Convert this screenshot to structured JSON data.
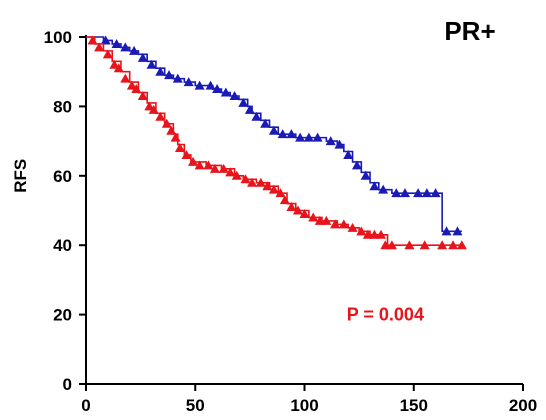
{
  "chart_data": {
    "type": "line",
    "title": "PR+",
    "ylabel": "RFS",
    "xlabel": "",
    "xlim": [
      0,
      200
    ],
    "ylim": [
      0,
      100
    ],
    "x_ticks": [
      "0",
      "50",
      "100",
      "150",
      "200"
    ],
    "y_ticks": [
      "0",
      "20",
      "40",
      "60",
      "80",
      "100"
    ],
    "x_tick_values": [
      0,
      50,
      100,
      150,
      200
    ],
    "y_tick_values": [
      0,
      20,
      40,
      60,
      80,
      100
    ],
    "grid": false,
    "annotation": {
      "text": "P = 0.004",
      "color": "#e8141b"
    },
    "series": [
      {
        "color": "#1a1ab4",
        "step": [
          [
            0,
            100
          ],
          [
            8,
            99
          ],
          [
            12,
            98
          ],
          [
            16,
            97
          ],
          [
            20,
            96
          ],
          [
            24,
            95
          ],
          [
            28,
            93
          ],
          [
            32,
            91
          ],
          [
            36,
            89
          ],
          [
            40,
            88
          ],
          [
            45,
            87
          ],
          [
            50,
            86
          ],
          [
            55,
            86
          ],
          [
            58,
            85
          ],
          [
            62,
            84
          ],
          [
            66,
            83
          ],
          [
            70,
            82
          ],
          [
            74,
            80
          ],
          [
            76,
            78
          ],
          [
            80,
            76
          ],
          [
            84,
            74
          ],
          [
            88,
            72
          ],
          [
            92,
            72
          ],
          [
            96,
            71
          ],
          [
            100,
            71
          ],
          [
            105,
            71
          ],
          [
            110,
            70
          ],
          [
            115,
            69
          ],
          [
            118,
            67
          ],
          [
            122,
            64
          ],
          [
            126,
            61
          ],
          [
            130,
            58
          ],
          [
            134,
            56
          ],
          [
            140,
            55
          ],
          [
            150,
            55
          ],
          [
            160,
            55
          ],
          [
            163,
            55
          ],
          [
            163,
            44
          ],
          [
            172,
            44
          ]
        ],
        "markers": [
          [
            9,
            99
          ],
          [
            14,
            98
          ],
          [
            18,
            97
          ],
          [
            22,
            96
          ],
          [
            26,
            94
          ],
          [
            30,
            92
          ],
          [
            34,
            90
          ],
          [
            38,
            89
          ],
          [
            42,
            88
          ],
          [
            47,
            87
          ],
          [
            52,
            86
          ],
          [
            57,
            86
          ],
          [
            60,
            85
          ],
          [
            64,
            84
          ],
          [
            68,
            83
          ],
          [
            72,
            81
          ],
          [
            75,
            79
          ],
          [
            78,
            77
          ],
          [
            82,
            75
          ],
          [
            86,
            73
          ],
          [
            90,
            72
          ],
          [
            94,
            72
          ],
          [
            98,
            71
          ],
          [
            102,
            71
          ],
          [
            106,
            71
          ],
          [
            112,
            70
          ],
          [
            116,
            69
          ],
          [
            120,
            66
          ],
          [
            124,
            63
          ],
          [
            128,
            60
          ],
          [
            132,
            57
          ],
          [
            136,
            56
          ],
          [
            142,
            55
          ],
          [
            146,
            55
          ],
          [
            152,
            55
          ],
          [
            156,
            55
          ],
          [
            160,
            55
          ],
          [
            165,
            44
          ],
          [
            170,
            44
          ]
        ]
      },
      {
        "color": "#e8141b",
        "step": [
          [
            0,
            100
          ],
          [
            4,
            98
          ],
          [
            8,
            96
          ],
          [
            12,
            93
          ],
          [
            16,
            90
          ],
          [
            20,
            87
          ],
          [
            24,
            84
          ],
          [
            28,
            81
          ],
          [
            32,
            78
          ],
          [
            36,
            75
          ],
          [
            40,
            72
          ],
          [
            42,
            69
          ],
          [
            45,
            66
          ],
          [
            48,
            64
          ],
          [
            55,
            63
          ],
          [
            62,
            62
          ],
          [
            68,
            60
          ],
          [
            72,
            59
          ],
          [
            78,
            58
          ],
          [
            84,
            57
          ],
          [
            88,
            55
          ],
          [
            92,
            52
          ],
          [
            96,
            50
          ],
          [
            102,
            48
          ],
          [
            108,
            47
          ],
          [
            115,
            46
          ],
          [
            120,
            45
          ],
          [
            125,
            44
          ],
          [
            130,
            43
          ],
          [
            136,
            43
          ],
          [
            138,
            40
          ],
          [
            150,
            40
          ],
          [
            172,
            40
          ]
        ],
        "markers": [
          [
            3,
            99
          ],
          [
            6,
            97
          ],
          [
            10,
            95
          ],
          [
            13,
            92
          ],
          [
            15,
            91
          ],
          [
            18,
            88
          ],
          [
            21,
            86
          ],
          [
            23,
            85
          ],
          [
            26,
            83
          ],
          [
            29,
            80
          ],
          [
            31,
            79
          ],
          [
            34,
            77
          ],
          [
            37,
            75
          ],
          [
            39,
            73
          ],
          [
            41,
            71
          ],
          [
            43,
            68
          ],
          [
            46,
            66
          ],
          [
            49,
            64
          ],
          [
            52,
            63
          ],
          [
            56,
            63
          ],
          [
            59,
            62
          ],
          [
            63,
            62
          ],
          [
            66,
            61
          ],
          [
            69,
            60
          ],
          [
            73,
            59
          ],
          [
            76,
            58
          ],
          [
            80,
            58
          ],
          [
            83,
            57
          ],
          [
            86,
            56
          ],
          [
            89,
            55
          ],
          [
            91,
            53
          ],
          [
            94,
            51
          ],
          [
            97,
            50
          ],
          [
            100,
            49
          ],
          [
            104,
            48
          ],
          [
            107,
            47
          ],
          [
            110,
            47
          ],
          [
            114,
            46
          ],
          [
            118,
            46
          ],
          [
            122,
            45
          ],
          [
            126,
            44
          ],
          [
            129,
            43
          ],
          [
            132,
            43
          ],
          [
            135,
            43
          ],
          [
            137,
            40
          ],
          [
            140,
            40
          ],
          [
            148,
            40
          ],
          [
            155,
            40
          ],
          [
            163,
            40
          ],
          [
            168,
            40
          ],
          [
            172,
            40
          ]
        ]
      }
    ]
  }
}
